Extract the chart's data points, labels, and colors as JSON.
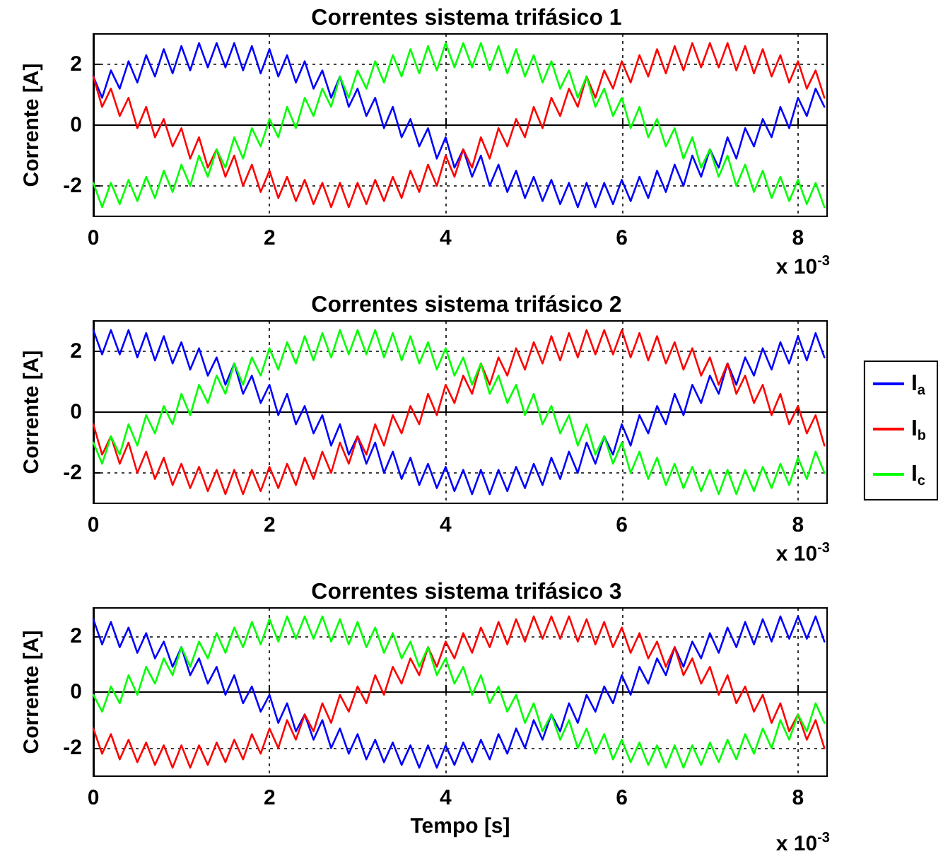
{
  "chart_data": [
    {
      "type": "line",
      "title": "Correntes sistema trifásico 1",
      "ylabel": "Corrente [A]",
      "annotations": [
        "x 10$^{-3}$"
      ],
      "xlim": [
        0,
        8.33
      ],
      "ylim": [
        -3,
        3
      ],
      "xticks": [
        0,
        2,
        4,
        6,
        8
      ],
      "yticks": [
        -2,
        0,
        2
      ],
      "grid": true,
      "x": [
        0,
        0.1,
        0.2,
        0.3,
        0.4,
        0.5,
        0.6,
        0.7,
        0.8,
        0.9,
        1,
        1.1,
        1.2,
        1.3,
        1.4,
        1.5,
        1.6,
        1.7,
        1.8,
        1.9,
        2,
        2.1,
        2.2,
        2.3,
        2.4,
        2.5,
        2.6,
        2.7,
        2.8,
        2.9,
        3,
        3.1,
        3.2,
        3.3,
        3.4,
        3.5,
        3.6,
        3.7,
        3.8,
        3.9,
        4,
        4.1,
        4.2,
        4.3,
        4.4,
        4.5,
        4.6,
        4.7,
        4.8,
        4.9,
        5,
        5.1,
        5.2,
        5.3,
        5.4,
        5.5,
        5.6,
        5.7,
        5.8,
        5.9,
        6,
        6.1,
        6.2,
        6.3,
        6.4,
        6.5,
        6.6,
        6.7,
        6.8,
        6.9,
        7,
        7.1,
        7.2,
        7.3,
        7.4,
        7.5,
        7.6,
        7.7,
        7.8,
        7.9,
        8,
        8.1,
        8.2,
        8.3
      ],
      "series": [
        {
          "color": "#0000ff",
          "values": [
            1.6,
            0.9,
            1.8,
            1.2,
            2.1,
            1.4,
            2.3,
            1.6,
            2.5,
            1.7,
            2.6,
            1.8,
            2.7,
            1.9,
            2.7,
            1.9,
            2.7,
            1.8,
            2.6,
            1.7,
            2.5,
            1.6,
            2.3,
            1.4,
            2.1,
            1.2,
            1.8,
            0.9,
            1.6,
            0.6,
            1.2,
            0.3,
            0.9,
            -0.1,
            0.6,
            -0.4,
            0.2,
            -0.7,
            -0.1,
            -1.1,
            -0.4,
            -1.4,
            -0.8,
            -1.7,
            -1.0,
            -2.0,
            -1.3,
            -2.2,
            -1.5,
            -2.4,
            -1.7,
            -2.5,
            -1.8,
            -2.6,
            -1.9,
            -2.7,
            -1.9,
            -2.7,
            -1.9,
            -2.6,
            -1.8,
            -2.5,
            -1.7,
            -2.4,
            -1.5,
            -2.2,
            -1.3,
            -2.0,
            -1.0,
            -1.7,
            -0.8,
            -1.4,
            -0.4,
            -1.1,
            -0.1,
            -0.7,
            0.2,
            -0.4,
            0.6,
            -0.1,
            0.9,
            0.3,
            1.2,
            0.6
          ]
        },
        {
          "color": "#ff0000",
          "values": [
            1.6,
            0.6,
            1.2,
            0.3,
            0.9,
            -0.1,
            0.6,
            -0.4,
            0.2,
            -0.7,
            -0.1,
            -1.1,
            -0.4,
            -1.4,
            -0.8,
            -1.7,
            -1.0,
            -2.0,
            -1.3,
            -2.2,
            -1.5,
            -2.4,
            -1.7,
            -2.5,
            -1.8,
            -2.6,
            -1.9,
            -2.7,
            -1.9,
            -2.7,
            -1.9,
            -2.6,
            -1.8,
            -2.5,
            -1.7,
            -2.4,
            -1.5,
            -2.2,
            -1.3,
            -2.0,
            -1.0,
            -1.7,
            -0.8,
            -1.4,
            -0.4,
            -1.1,
            -0.1,
            -0.7,
            0.2,
            -0.4,
            0.6,
            -0.1,
            0.9,
            0.3,
            1.2,
            0.6,
            1.6,
            0.9,
            1.8,
            1.2,
            2.1,
            1.4,
            2.3,
            1.6,
            2.5,
            1.7,
            2.6,
            1.8,
            2.7,
            1.9,
            2.7,
            1.9,
            2.7,
            1.8,
            2.6,
            1.7,
            2.5,
            1.6,
            2.3,
            1.4,
            2.1,
            1.2,
            1.8,
            0.9
          ]
        },
        {
          "color": "#00ff00",
          "values": [
            -1.9,
            -2.7,
            -1.9,
            -2.6,
            -1.8,
            -2.5,
            -1.7,
            -2.4,
            -1.5,
            -2.2,
            -1.3,
            -2.0,
            -1.0,
            -1.7,
            -0.8,
            -1.4,
            -0.4,
            -1.1,
            -0.1,
            -0.7,
            0.2,
            -0.4,
            0.6,
            -0.1,
            0.9,
            0.3,
            1.2,
            0.6,
            1.6,
            0.9,
            1.8,
            1.2,
            2.1,
            1.4,
            2.3,
            1.6,
            2.5,
            1.7,
            2.6,
            1.8,
            2.7,
            1.9,
            2.7,
            1.9,
            2.7,
            1.8,
            2.6,
            1.7,
            2.5,
            1.6,
            2.3,
            1.4,
            2.1,
            1.2,
            1.8,
            0.9,
            1.6,
            0.6,
            1.2,
            0.3,
            0.9,
            -0.1,
            0.6,
            -0.4,
            0.2,
            -0.7,
            -0.1,
            -1.1,
            -0.4,
            -1.4,
            -0.8,
            -1.7,
            -1.0,
            -2.0,
            -1.3,
            -2.2,
            -1.5,
            -2.4,
            -1.7,
            -2.5,
            -1.8,
            -2.6,
            -1.9,
            -2.7
          ]
        }
      ]
    },
    {
      "type": "line",
      "title": "Correntes sistema trifásico 2",
      "ylabel": "Corrente [A]",
      "annotations": [
        "x 10$^{-3}$"
      ],
      "xlim": [
        0,
        8.33
      ],
      "ylim": [
        -3,
        3
      ],
      "xticks": [
        0,
        2,
        4,
        6,
        8
      ],
      "yticks": [
        -2,
        0,
        2
      ],
      "grid": true,
      "legend": "right",
      "x": [
        0,
        0.1,
        0.2,
        0.3,
        0.4,
        0.5,
        0.6,
        0.7,
        0.8,
        0.9,
        1,
        1.1,
        1.2,
        1.3,
        1.4,
        1.5,
        1.6,
        1.7,
        1.8,
        1.9,
        2,
        2.1,
        2.2,
        2.3,
        2.4,
        2.5,
        2.6,
        2.7,
        2.8,
        2.9,
        3,
        3.1,
        3.2,
        3.3,
        3.4,
        3.5,
        3.6,
        3.7,
        3.8,
        3.9,
        4,
        4.1,
        4.2,
        4.3,
        4.4,
        4.5,
        4.6,
        4.7,
        4.8,
        4.9,
        5,
        5.1,
        5.2,
        5.3,
        5.4,
        5.5,
        5.6,
        5.7,
        5.8,
        5.9,
        6,
        6.1,
        6.2,
        6.3,
        6.4,
        6.5,
        6.6,
        6.7,
        6.8,
        6.9,
        7,
        7.1,
        7.2,
        7.3,
        7.4,
        7.5,
        7.6,
        7.7,
        7.8,
        7.9,
        8,
        8.1,
        8.2,
        8.3
      ],
      "series": [
        {
          "name": "I$_{a}$",
          "color": "#0000ff",
          "values": [
            2.7,
            1.9,
            2.7,
            1.9,
            2.7,
            1.8,
            2.6,
            1.7,
            2.5,
            1.6,
            2.3,
            1.4,
            2.1,
            1.2,
            1.8,
            0.9,
            1.6,
            0.6,
            1.2,
            0.3,
            0.9,
            -0.1,
            0.6,
            -0.4,
            0.2,
            -0.7,
            -0.1,
            -1.1,
            -0.4,
            -1.4,
            -0.8,
            -1.7,
            -1.0,
            -2.0,
            -1.3,
            -2.2,
            -1.5,
            -2.4,
            -1.7,
            -2.5,
            -1.8,
            -2.6,
            -1.9,
            -2.7,
            -1.9,
            -2.7,
            -1.9,
            -2.6,
            -1.8,
            -2.5,
            -1.7,
            -2.4,
            -1.5,
            -2.2,
            -1.3,
            -2.0,
            -1.0,
            -1.7,
            -0.8,
            -1.4,
            -0.4,
            -1.1,
            -0.1,
            -0.7,
            0.2,
            -0.4,
            0.6,
            -0.1,
            0.9,
            0.3,
            1.2,
            0.6,
            1.6,
            0.9,
            1.8,
            1.2,
            2.1,
            1.4,
            2.3,
            1.6,
            2.5,
            1.7,
            2.6,
            1.8
          ]
        },
        {
          "name": "I$_{b}$",
          "color": "#ff0000",
          "values": [
            -0.4,
            -1.4,
            -0.8,
            -1.7,
            -1.0,
            -2.0,
            -1.3,
            -2.2,
            -1.5,
            -2.4,
            -1.7,
            -2.5,
            -1.8,
            -2.6,
            -1.9,
            -2.7,
            -1.9,
            -2.7,
            -1.9,
            -2.6,
            -1.8,
            -2.5,
            -1.7,
            -2.4,
            -1.5,
            -2.2,
            -1.3,
            -2.0,
            -1.0,
            -1.7,
            -0.8,
            -1.4,
            -0.4,
            -1.1,
            -0.1,
            -0.7,
            0.2,
            -0.4,
            0.6,
            -0.1,
            0.9,
            0.3,
            1.2,
            0.6,
            1.6,
            0.9,
            1.8,
            1.2,
            2.1,
            1.4,
            2.3,
            1.6,
            2.5,
            1.7,
            2.6,
            1.8,
            2.7,
            1.9,
            2.7,
            1.9,
            2.7,
            1.8,
            2.6,
            1.7,
            2.5,
            1.6,
            2.3,
            1.4,
            2.1,
            1.2,
            1.8,
            0.9,
            1.6,
            0.6,
            1.2,
            0.3,
            0.9,
            -0.1,
            0.6,
            -0.4,
            0.2,
            -0.7,
            -0.1,
            -1.1
          ]
        },
        {
          "name": "I$_{c}$",
          "color": "#00ff00",
          "values": [
            -1.0,
            -1.7,
            -0.8,
            -1.4,
            -0.4,
            -1.1,
            -0.1,
            -0.7,
            0.2,
            -0.4,
            0.6,
            -0.1,
            0.9,
            0.3,
            1.2,
            0.6,
            1.6,
            0.9,
            1.8,
            1.2,
            2.1,
            1.4,
            2.3,
            1.6,
            2.5,
            1.7,
            2.6,
            1.8,
            2.7,
            1.9,
            2.7,
            1.9,
            2.7,
            1.8,
            2.6,
            1.7,
            2.5,
            1.6,
            2.3,
            1.4,
            2.1,
            1.2,
            1.8,
            0.9,
            1.6,
            0.6,
            1.2,
            0.3,
            0.9,
            -0.1,
            0.6,
            -0.4,
            0.2,
            -0.7,
            -0.1,
            -1.1,
            -0.4,
            -1.4,
            -0.8,
            -1.7,
            -1.0,
            -2.0,
            -1.3,
            -2.2,
            -1.5,
            -2.4,
            -1.7,
            -2.5,
            -1.8,
            -2.6,
            -1.9,
            -2.7,
            -1.9,
            -2.7,
            -1.9,
            -2.6,
            -1.8,
            -2.5,
            -1.7,
            -2.4,
            -1.5,
            -2.2,
            -1.3,
            -2.0
          ]
        }
      ]
    },
    {
      "type": "line",
      "title": "Correntes sistema trifásico 3",
      "xlabel": "Tempo [s]",
      "ylabel": "Corrente [A]",
      "annotations": [
        "x 10$^{-3}$"
      ],
      "xlim": [
        0,
        8.33
      ],
      "ylim": [
        -3,
        3
      ],
      "xticks": [
        0,
        2,
        4,
        6,
        8
      ],
      "yticks": [
        -2,
        0,
        2
      ],
      "grid": true,
      "x": [
        0,
        0.1,
        0.2,
        0.3,
        0.4,
        0.5,
        0.6,
        0.7,
        0.8,
        0.9,
        1,
        1.1,
        1.2,
        1.3,
        1.4,
        1.5,
        1.6,
        1.7,
        1.8,
        1.9,
        2,
        2.1,
        2.2,
        2.3,
        2.4,
        2.5,
        2.6,
        2.7,
        2.8,
        2.9,
        3,
        3.1,
        3.2,
        3.3,
        3.4,
        3.5,
        3.6,
        3.7,
        3.8,
        3.9,
        4,
        4.1,
        4.2,
        4.3,
        4.4,
        4.5,
        4.6,
        4.7,
        4.8,
        4.9,
        5,
        5.1,
        5.2,
        5.3,
        5.4,
        5.5,
        5.6,
        5.7,
        5.8,
        5.9,
        6,
        6.1,
        6.2,
        6.3,
        6.4,
        6.5,
        6.6,
        6.7,
        6.8,
        6.9,
        7,
        7.1,
        7.2,
        7.3,
        7.4,
        7.5,
        7.6,
        7.7,
        7.8,
        7.9,
        8,
        8.1,
        8.2,
        8.3
      ],
      "series": [
        {
          "color": "#0000ff",
          "values": [
            2.6,
            1.7,
            2.5,
            1.6,
            2.3,
            1.4,
            2.1,
            1.2,
            1.8,
            0.9,
            1.6,
            0.6,
            1.2,
            0.3,
            0.9,
            -0.1,
            0.6,
            -0.4,
            0.2,
            -0.7,
            -0.1,
            -1.1,
            -0.4,
            -1.4,
            -0.8,
            -1.7,
            -1.0,
            -2.0,
            -1.3,
            -2.2,
            -1.5,
            -2.4,
            -1.7,
            -2.5,
            -1.8,
            -2.6,
            -1.9,
            -2.7,
            -1.9,
            -2.7,
            -1.9,
            -2.6,
            -1.8,
            -2.5,
            -1.7,
            -2.4,
            -1.5,
            -2.2,
            -1.3,
            -2.0,
            -1.0,
            -1.7,
            -0.8,
            -1.4,
            -0.4,
            -1.1,
            -0.1,
            -0.7,
            0.2,
            -0.4,
            0.6,
            -0.1,
            0.9,
            0.3,
            1.2,
            0.6,
            1.6,
            0.9,
            1.8,
            1.2,
            2.1,
            1.4,
            2.3,
            1.6,
            2.5,
            1.7,
            2.6,
            1.8,
            2.7,
            1.9,
            2.7,
            1.9,
            2.7,
            1.8
          ]
        },
        {
          "color": "#ff0000",
          "values": [
            -1.3,
            -2.2,
            -1.5,
            -2.4,
            -1.7,
            -2.5,
            -1.8,
            -2.6,
            -1.9,
            -2.7,
            -1.9,
            -2.7,
            -1.9,
            -2.6,
            -1.8,
            -2.5,
            -1.7,
            -2.4,
            -1.5,
            -2.2,
            -1.3,
            -2.0,
            -1.0,
            -1.7,
            -0.8,
            -1.4,
            -0.4,
            -1.1,
            -0.1,
            -0.7,
            0.2,
            -0.4,
            0.6,
            -0.1,
            0.9,
            0.3,
            1.2,
            0.6,
            1.6,
            0.9,
            1.8,
            1.2,
            2.1,
            1.4,
            2.3,
            1.6,
            2.5,
            1.7,
            2.6,
            1.8,
            2.7,
            1.9,
            2.7,
            1.9,
            2.7,
            1.8,
            2.6,
            1.7,
            2.5,
            1.6,
            2.3,
            1.4,
            2.1,
            1.2,
            1.8,
            0.9,
            1.6,
            0.6,
            1.2,
            0.3,
            0.9,
            -0.1,
            0.6,
            -0.4,
            0.2,
            -0.7,
            -0.1,
            -1.1,
            -0.4,
            -1.4,
            -0.8,
            -1.7,
            -1.0,
            -2.0
          ]
        },
        {
          "color": "#00ff00",
          "values": [
            -0.1,
            -0.7,
            0.2,
            -0.4,
            0.6,
            -0.1,
            0.9,
            0.3,
            1.2,
            0.6,
            1.6,
            0.9,
            1.8,
            1.2,
            2.1,
            1.4,
            2.3,
            1.6,
            2.5,
            1.7,
            2.6,
            1.8,
            2.7,
            1.9,
            2.7,
            1.9,
            2.7,
            1.8,
            2.6,
            1.7,
            2.5,
            1.6,
            2.3,
            1.4,
            2.1,
            1.2,
            1.8,
            0.9,
            1.6,
            0.6,
            1.2,
            0.3,
            0.9,
            -0.1,
            0.6,
            -0.4,
            0.2,
            -0.7,
            -0.1,
            -1.1,
            -0.4,
            -1.4,
            -0.8,
            -1.7,
            -1.0,
            -2.0,
            -1.3,
            -2.2,
            -1.5,
            -2.4,
            -1.7,
            -2.5,
            -1.8,
            -2.6,
            -1.9,
            -2.7,
            -1.9,
            -2.7,
            -1.9,
            -2.6,
            -1.8,
            -2.5,
            -1.7,
            -2.4,
            -1.5,
            -2.2,
            -1.3,
            -2.0,
            -1.0,
            -1.7,
            -0.8,
            -1.4,
            -0.4,
            -1.1
          ]
        }
      ]
    }
  ]
}
